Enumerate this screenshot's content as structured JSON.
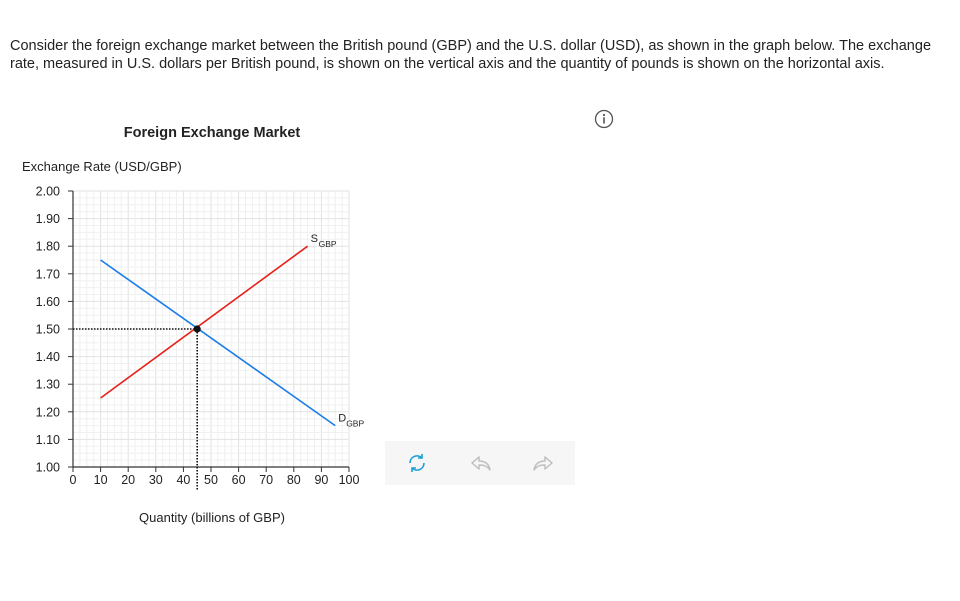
{
  "prompt": {
    "text": "Consider the foreign exchange market between the British pound (GBP) and the U.S. dollar (USD), as shown in the graph below. The exchange rate, measured in U.S. dollars per British pound, is shown on the vertical axis and the quantity of pounds is shown on the horizontal axis."
  },
  "chart_data": {
    "type": "line",
    "title": "Foreign Exchange Market",
    "ylabel": "Exchange Rate (USD/GBP)",
    "xlabel": "Quantity (billions of GBP)",
    "xlim": [
      0,
      100
    ],
    "ylim": [
      1.0,
      2.0
    ],
    "x_ticks": [
      0,
      10,
      20,
      30,
      40,
      50,
      60,
      70,
      80,
      90,
      100
    ],
    "y_ticks": [
      1.0,
      1.1,
      1.2,
      1.3,
      1.4,
      1.5,
      1.6,
      1.7,
      1.8,
      1.9,
      2.0
    ],
    "grid": true,
    "series": [
      {
        "name": "S",
        "subscript": "GBP",
        "color": "#e8201a",
        "x": [
          10,
          85
        ],
        "y": [
          1.25,
          1.8
        ]
      },
      {
        "name": "D",
        "subscript": "GBP",
        "color": "#1a7de8",
        "x": [
          10,
          95
        ],
        "y": [
          1.75,
          1.15
        ]
      }
    ],
    "equilibrium": {
      "x": 45,
      "y": 1.5
    }
  },
  "icons": {
    "info": "info-icon",
    "reset": "reset-icon",
    "undo": "undo-icon",
    "redo": "redo-icon"
  },
  "colors": {
    "accent": "#1a9fd6",
    "disabled": "#bdbdbd"
  }
}
